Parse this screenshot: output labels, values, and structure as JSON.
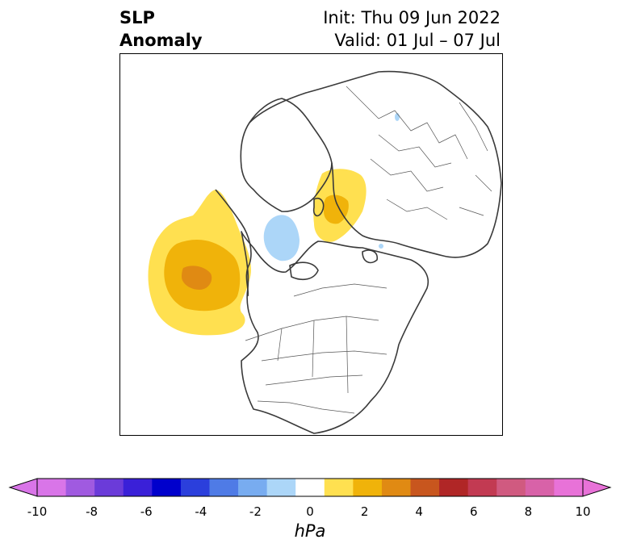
{
  "title": {
    "left_line1": "SLP",
    "left_line2": "Anomaly",
    "right_line1": "Init: Thu 09 Jun 2022",
    "right_line2": "Valid: 01 Jul – 07 Jul"
  },
  "colorbar": {
    "unit": "hPa",
    "tick_labels": [
      "-10",
      "-8",
      "-6",
      "-4",
      "-2",
      "0",
      "2",
      "4",
      "6",
      "8",
      "10"
    ],
    "colors": [
      "#d975e8",
      "#a05ae0",
      "#6b3bd9",
      "#3a20d8",
      "#0000cc",
      "#2b3fdc",
      "#4f7be6",
      "#78acf0",
      "#acd6f8",
      "#ffffff",
      "#ffe050",
      "#f0b30a",
      "#e08a13",
      "#c8561e",
      "#b02626",
      "#c23a52",
      "#d05a80",
      "#d862a8",
      "#e872d8"
    ]
  },
  "map": {
    "anomalies": [
      {
        "region": "northeast-pacific",
        "sign": "positive",
        "max_hpa": 4
      },
      {
        "region": "kara-sea",
        "sign": "positive",
        "max_hpa": 4
      },
      {
        "region": "arctic-ocean",
        "sign": "negative",
        "max_hpa": -2
      }
    ]
  }
}
